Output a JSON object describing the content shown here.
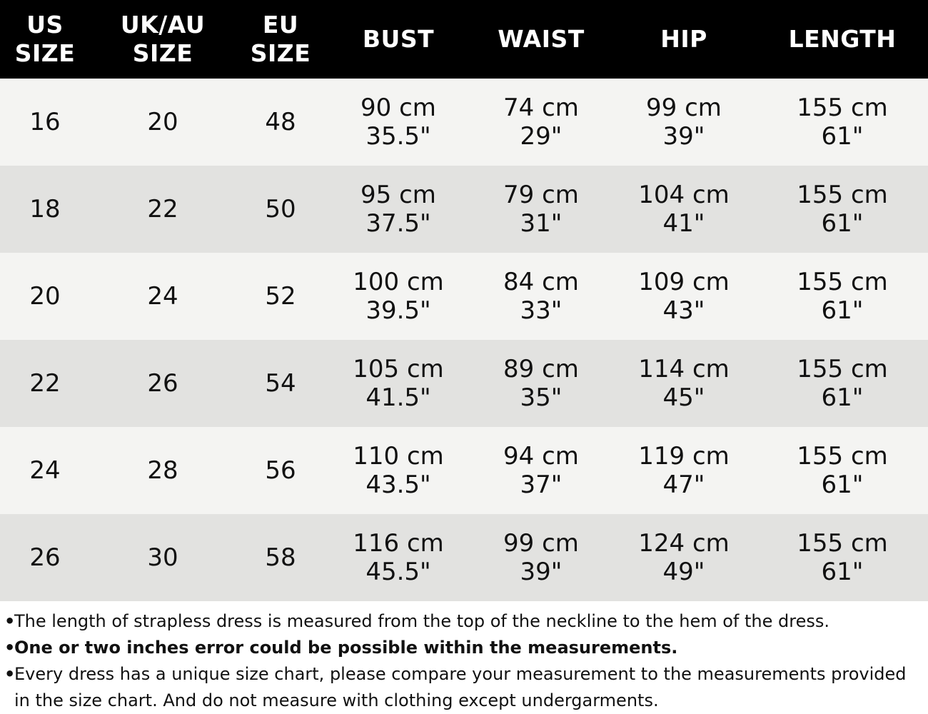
{
  "headers": {
    "us": [
      "US",
      "SIZE"
    ],
    "uk": [
      "UK/AU",
      "SIZE"
    ],
    "eu": [
      "EU",
      "SIZE"
    ],
    "bust": "BUST",
    "waist": "WAIST",
    "hip": "HIP",
    "length": "LENGTH"
  },
  "rows": [
    {
      "us": "16",
      "uk": "20",
      "eu": "48",
      "bust_cm": "90 cm",
      "bust_in": "35.5\"",
      "waist_cm": "74 cm",
      "waist_in": "29\"",
      "hip_cm": "99 cm",
      "hip_in": "39\"",
      "length_cm": "155 cm",
      "length_in": "61\""
    },
    {
      "us": "18",
      "uk": "22",
      "eu": "50",
      "bust_cm": "95 cm",
      "bust_in": "37.5\"",
      "waist_cm": "79 cm",
      "waist_in": "31\"",
      "hip_cm": "104 cm",
      "hip_in": "41\"",
      "length_cm": "155 cm",
      "length_in": "61\""
    },
    {
      "us": "20",
      "uk": "24",
      "eu": "52",
      "bust_cm": "100 cm",
      "bust_in": "39.5\"",
      "waist_cm": "84 cm",
      "waist_in": "33\"",
      "hip_cm": "109 cm",
      "hip_in": "43\"",
      "length_cm": "155 cm",
      "length_in": "61\""
    },
    {
      "us": "22",
      "uk": "26",
      "eu": "54",
      "bust_cm": "105 cm",
      "bust_in": "41.5\"",
      "waist_cm": "89 cm",
      "waist_in": "35\"",
      "hip_cm": "114 cm",
      "hip_in": "45\"",
      "length_cm": "155 cm",
      "length_in": "61\""
    },
    {
      "us": "24",
      "uk": "28",
      "eu": "56",
      "bust_cm": "110 cm",
      "bust_in": "43.5\"",
      "waist_cm": "94 cm",
      "waist_in": "37\"",
      "hip_cm": "119 cm",
      "hip_in": "47\"",
      "length_cm": "155 cm",
      "length_in": "61\""
    },
    {
      "us": "26",
      "uk": "30",
      "eu": "58",
      "bust_cm": "116 cm",
      "bust_in": "45.5\"",
      "waist_cm": "99 cm",
      "waist_in": "39\"",
      "hip_cm": "124 cm",
      "hip_in": "49\"",
      "length_cm": "155 cm",
      "length_in": "61\""
    }
  ],
  "notes": [
    "The length of strapless dress is measured from the top of the neckline to the hem of the dress.",
    "One or two inches error could be possible within the measurements.",
    "Every dress has a unique size chart, please compare your measurement to the measurements provided in the size chart. And do not measure with clothing except undergarments."
  ],
  "bullet_char": "•",
  "colors": {
    "header_bg": "#000000",
    "header_text": "#ffffff",
    "row_light": "#f4f4f2",
    "row_dark": "#e2e2e0"
  }
}
